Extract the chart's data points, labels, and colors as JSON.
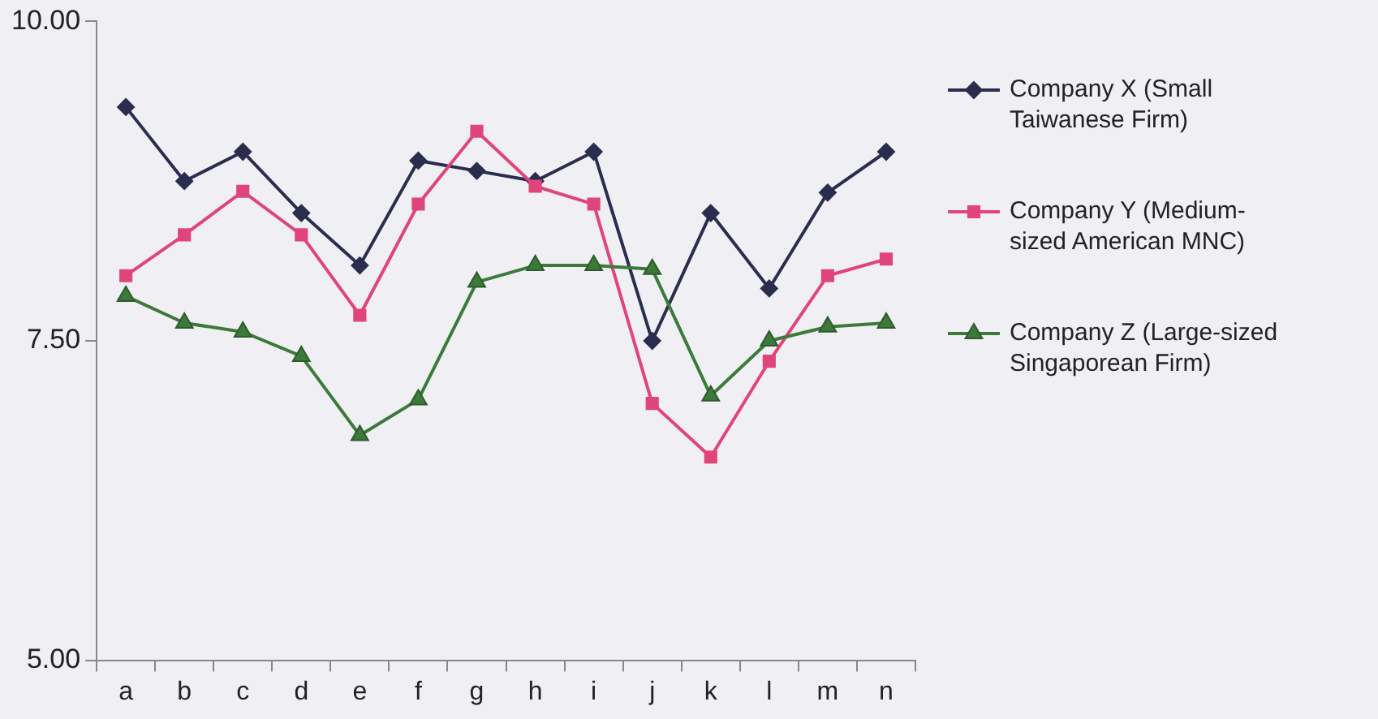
{
  "chart_data": {
    "type": "line",
    "categories": [
      "a",
      "b",
      "c",
      "d",
      "e",
      "f",
      "g",
      "h",
      "i",
      "j",
      "k",
      "l",
      "m",
      "n"
    ],
    "series": [
      {
        "name": "Company X (Small Taiwanese Firm)",
        "color": "#2b2d4e",
        "marker": "diamond",
        "values": [
          9.33,
          8.75,
          8.98,
          8.5,
          8.09,
          8.91,
          8.83,
          8.75,
          8.98,
          7.5,
          8.5,
          7.91,
          8.66,
          8.98
        ]
      },
      {
        "name": "Company Y (Medium-sized American MNC)",
        "color": "#e0457a",
        "marker": "square",
        "values": [
          8.01,
          8.33,
          8.67,
          8.33,
          7.7,
          8.57,
          9.14,
          8.71,
          8.57,
          7.01,
          6.59,
          7.34,
          8.01,
          8.14
        ]
      },
      {
        "name": "Company Z (Large-sized Singaporean Firm)",
        "color": "#3c7a3a",
        "marker": "triangle",
        "values": [
          7.85,
          7.64,
          7.57,
          7.38,
          6.76,
          7.04,
          7.96,
          8.09,
          8.09,
          8.06,
          7.07,
          7.5,
          7.61,
          7.64
        ]
      }
    ],
    "ylim": [
      5,
      10
    ],
    "yticks": [
      {
        "value": 5,
        "label": "5.00"
      },
      {
        "value": 7.5,
        "label": "7.50"
      },
      {
        "value": 10,
        "label": "10.00"
      }
    ],
    "grid": false,
    "legend": "right",
    "line_style": "solid"
  }
}
